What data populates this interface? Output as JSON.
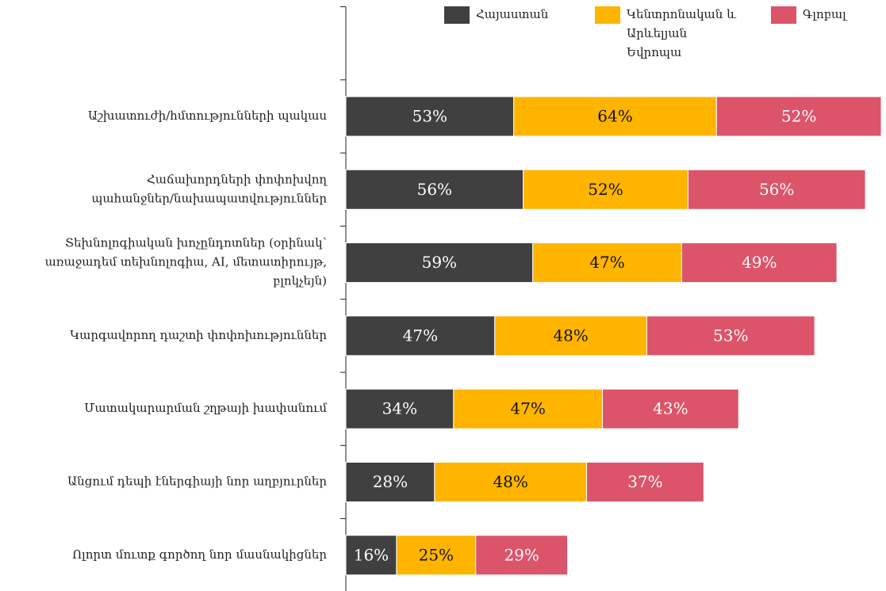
{
  "chart_data": {
    "type": "stacked-bar-horizontal",
    "categories": [
      "Աշխատուժի/հմտությունների պակաս",
      "Հաճախորդների փոփոխվող պահանջներ/նախապատվություններ",
      "Տեխնոլոգիական խոչընդոտներ (օրինակ՝ առաջադեմ տեխնոլոգիա, AI, մետատիրույթ, բլոկչեյն)",
      "Կարգավորող դաշտի փոփոխություններ",
      "Մատակարարման շղթայի խափանում",
      "Անցում դեպի էներգիայի նոր աղբյուրներ",
      "Ոլորտ մուտք գործող նոր մասնակիցներ"
    ],
    "series": [
      {
        "name": "Հայաստան",
        "color": "#404040",
        "values": [
          53,
          56,
          59,
          47,
          34,
          28,
          16
        ],
        "value_labels": [
          "53%",
          "56%",
          "59%",
          "47%",
          "34%",
          "28%",
          "16%"
        ]
      },
      {
        "name": "Կենտրոնական և Արևելյան Եվրոպա",
        "color": "#FFB400",
        "values": [
          64,
          52,
          47,
          48,
          47,
          48,
          25
        ],
        "value_labels": [
          "64%",
          "52%",
          "47%",
          "48%",
          "47%",
          "48%",
          "25%"
        ]
      },
      {
        "name": "Գլոբալ",
        "color": "#DC546A",
        "values": [
          52,
          56,
          49,
          53,
          43,
          37,
          29
        ],
        "value_labels": [
          "52%",
          "56%",
          "49%",
          "53%",
          "43%",
          "37%",
          "29%"
        ]
      }
    ],
    "legend": "top"
  }
}
